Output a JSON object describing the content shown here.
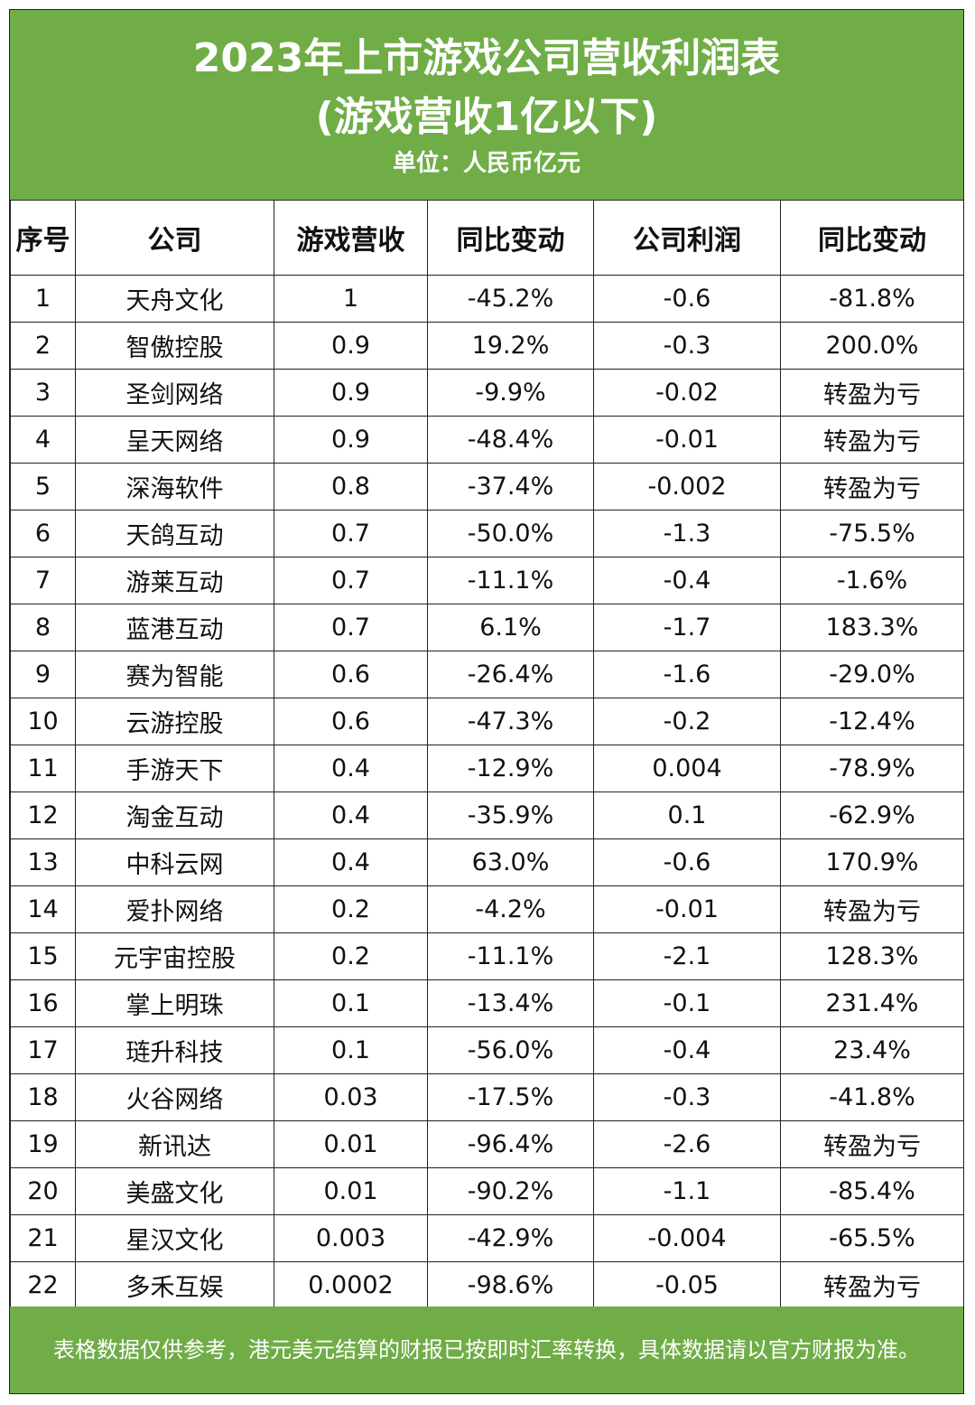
{
  "header": {
    "title_line1": "2023年上市游戏公司营收利润表",
    "title_line2": "(游戏营收1亿以下)",
    "unit": "单位：人民币亿元"
  },
  "table": {
    "columns": [
      "序号",
      "公司",
      "游戏营收",
      "同比变动",
      "公司利润",
      "同比变动"
    ],
    "rows": [
      [
        "1",
        "天舟文化",
        "1",
        "-45.2%",
        "-0.6",
        "-81.8%"
      ],
      [
        "2",
        "智傲控股",
        "0.9",
        "19.2%",
        "-0.3",
        "200.0%"
      ],
      [
        "3",
        "圣剑网络",
        "0.9",
        "-9.9%",
        "-0.02",
        "转盈为亏"
      ],
      [
        "4",
        "呈天网络",
        "0.9",
        "-48.4%",
        "-0.01",
        "转盈为亏"
      ],
      [
        "5",
        "深海软件",
        "0.8",
        "-37.4%",
        "-0.002",
        "转盈为亏"
      ],
      [
        "6",
        "天鸽互动",
        "0.7",
        "-50.0%",
        "-1.3",
        "-75.5%"
      ],
      [
        "7",
        "游莱互动",
        "0.7",
        "-11.1%",
        "-0.4",
        "-1.6%"
      ],
      [
        "8",
        "蓝港互动",
        "0.7",
        "6.1%",
        "-1.7",
        "183.3%"
      ],
      [
        "9",
        "赛为智能",
        "0.6",
        "-26.4%",
        "-1.6",
        "-29.0%"
      ],
      [
        "10",
        "云游控股",
        "0.6",
        "-47.3%",
        "-0.2",
        "-12.4%"
      ],
      [
        "11",
        "手游天下",
        "0.4",
        "-12.9%",
        "0.004",
        "-78.9%"
      ],
      [
        "12",
        "淘金互动",
        "0.4",
        "-35.9%",
        "0.1",
        "-62.9%"
      ],
      [
        "13",
        "中科云网",
        "0.4",
        "63.0%",
        "-0.6",
        "170.9%"
      ],
      [
        "14",
        "爱扑网络",
        "0.2",
        "-4.2%",
        "-0.01",
        "转盈为亏"
      ],
      [
        "15",
        "元宇宙控股",
        "0.2",
        "-11.1%",
        "-2.1",
        "128.3%"
      ],
      [
        "16",
        "掌上明珠",
        "0.1",
        "-13.4%",
        "-0.1",
        "231.4%"
      ],
      [
        "17",
        "琏升科技",
        "0.1",
        "-56.0%",
        "-0.4",
        "23.4%"
      ],
      [
        "18",
        "火谷网络",
        "0.03",
        "-17.5%",
        "-0.3",
        "-41.8%"
      ],
      [
        "19",
        "新讯达",
        "0.01",
        "-96.4%",
        "-2.6",
        "转盈为亏"
      ],
      [
        "20",
        "美盛文化",
        "0.01",
        "-90.2%",
        "-1.1",
        "-85.4%"
      ],
      [
        "21",
        "星汉文化",
        "0.003",
        "-42.9%",
        "-0.004",
        "-65.5%"
      ],
      [
        "22",
        "多禾互娱",
        "0.0002",
        "-98.6%",
        "-0.05",
        "转盈为亏"
      ]
    ]
  },
  "footer": {
    "note": "表格数据仅供参考，港元美元结算的财报已按即时汇率转换，具体数据请以官方财报为准。"
  },
  "colors": {
    "accent_green": "#70ad47",
    "border": "#222222",
    "header_text": "#ffffff"
  }
}
